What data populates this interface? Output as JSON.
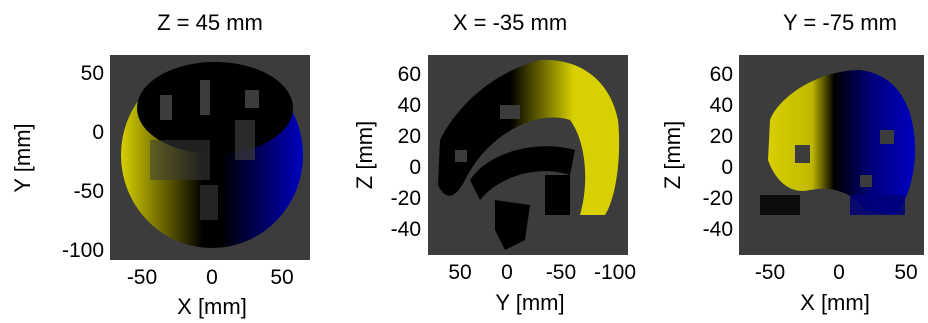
{
  "figure": {
    "panels": [
      {
        "title": "Z = 45 mm",
        "xlabel": "X [mm]",
        "ylabel": "Y [mm]",
        "xticks": [
          "-50",
          "0",
          "50"
        ],
        "yticks": [
          "50",
          "0",
          "-50",
          "-100"
        ]
      },
      {
        "title": "X = -35 mm",
        "xlabel": "Y [mm]",
        "ylabel": "Z [mm]",
        "xticks": [
          "50",
          "0",
          "-50",
          "-100"
        ],
        "yticks": [
          "60",
          "40",
          "20",
          "0",
          "-20",
          "-40"
        ]
      },
      {
        "title": "Y = -75 mm",
        "xlabel": "X [mm]",
        "ylabel": "Z [mm]",
        "xticks": [
          "-50",
          "0",
          "50"
        ],
        "yticks": [
          "60",
          "40",
          "20",
          "0",
          "-20",
          "-40"
        ]
      }
    ],
    "colors": {
      "background": "#3c3c3c",
      "positive": "#d8d000",
      "negative": "#0000c0",
      "zero": "#000000"
    }
  }
}
